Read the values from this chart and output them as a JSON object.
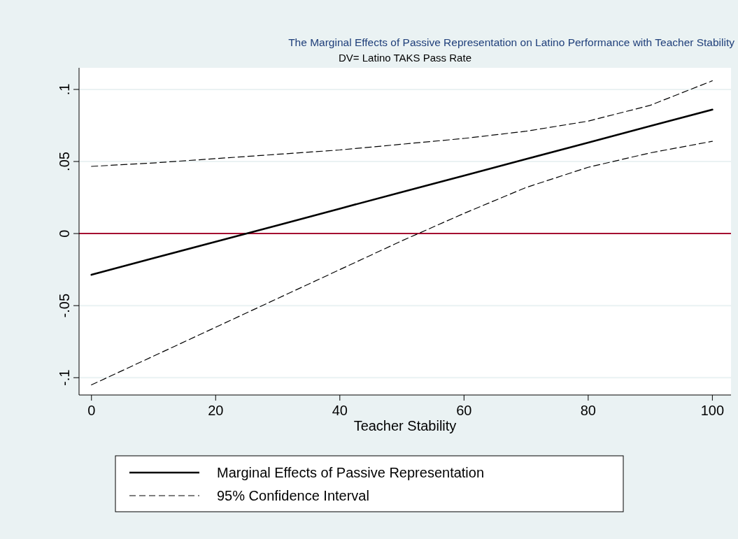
{
  "chart_data": {
    "type": "line",
    "title": "The Marginal Effects of Passive Representation on Latino Performance with Teacher Stability",
    "subtitle": "DV= Latino TAKS Pass Rate",
    "xlabel": "Teacher Stability",
    "x": [
      0,
      10,
      20,
      30,
      40,
      50,
      60,
      70,
      80,
      90,
      100
    ],
    "series": [
      {
        "name": "Marginal Effects of Passive Representation",
        "color": "#000000",
        "line_style": "solid",
        "values": [
          -0.0286,
          -0.0171,
          -0.0056,
          0.0058,
          0.0173,
          0.0288,
          0.0402,
          0.0517,
          0.0631,
          0.0746,
          0.086
        ]
      },
      {
        "name": "95% Confidence Interval",
        "color": "#000000",
        "line_style": "dashed",
        "values": [
          0.0466,
          0.049,
          0.052,
          0.055,
          0.058,
          0.062,
          0.066,
          0.071,
          0.078,
          0.089,
          0.106
        ]
      },
      {
        "color": "#000000",
        "line_style": "dashed",
        "values": [
          -0.105,
          -0.085,
          -0.065,
          -0.045,
          -0.025,
          -0.005,
          0.014,
          0.032,
          0.046,
          0.056,
          0.064
        ]
      }
    ],
    "xlim": [
      -2,
      103
    ],
    "ylim": [
      -0.112,
      0.115
    ],
    "xticks": [
      0,
      20,
      40,
      60,
      80,
      100
    ],
    "yticks": [
      {
        "value": -0.1,
        "label": "-.1"
      },
      {
        "value": -0.05,
        "label": "-.05"
      },
      {
        "value": 0,
        "label": "0"
      },
      {
        "value": 0.05,
        "label": ".05"
      },
      {
        "value": 0.1,
        "label": ".1"
      }
    ],
    "ref_lines": [
      {
        "axis": "y",
        "value": 0,
        "color": "#a50f31"
      }
    ],
    "grid": "y",
    "legend": "bottom"
  }
}
